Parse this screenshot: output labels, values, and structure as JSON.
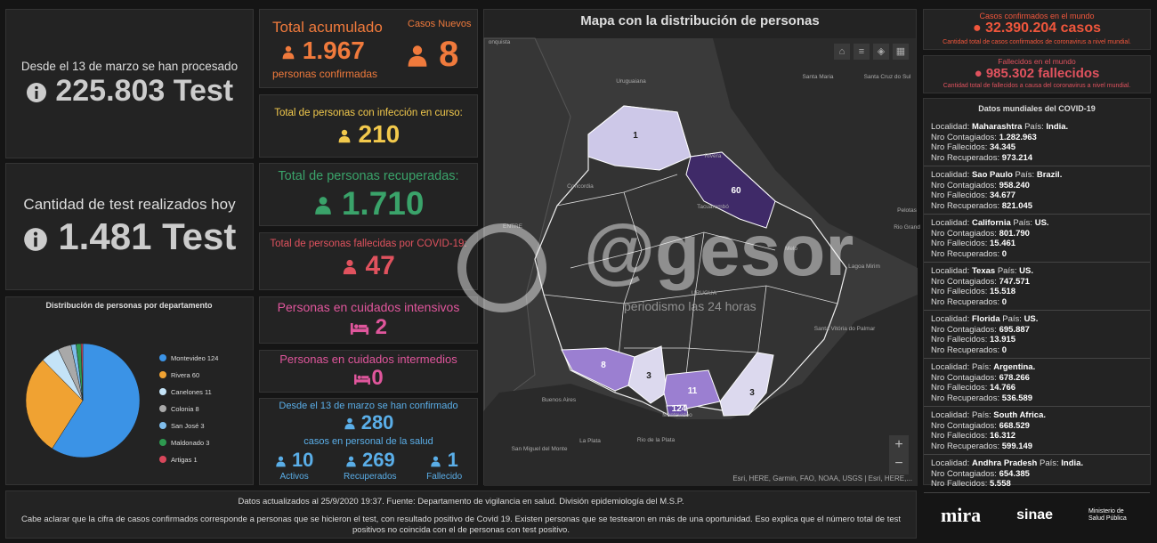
{
  "tests": {
    "processed_label": "Desde el 13 de marzo se han procesado",
    "processed_value": "225.803 Test",
    "today_label": "Cantidad de test realizados hoy",
    "today_value": "1.481 Test"
  },
  "cases": {
    "total_label": "Total acumulado",
    "total_value": "1.967",
    "total_sub": "personas confirmadas",
    "new_label": "Casos Nuevos",
    "new_value": "8"
  },
  "active": {
    "label": "Total de personas con infección en curso:",
    "value": "210"
  },
  "recovered": {
    "label": "Total de personas recuperadas:",
    "value": "1.710"
  },
  "deaths": {
    "label": "Total de personas fallecidas por COVID-19:",
    "value": "47"
  },
  "icu": {
    "label": "Personas en cuidados intensivos",
    "value": "2"
  },
  "intermediate": {
    "label": "Personas en cuidados intermedios",
    "value": "0"
  },
  "health_staff": {
    "label_top": "Desde el 13 de marzo se han confirmado",
    "value": "280",
    "label_bottom": "casos en personal de la salud",
    "items": [
      {
        "value": "10",
        "label": "Activos"
      },
      {
        "value": "269",
        "label": "Recuperados"
      },
      {
        "value": "1",
        "label": "Fallecido"
      }
    ]
  },
  "chart_data": {
    "type": "pie",
    "title": "Distribución de personas por departamento",
    "categories": [
      "Montevideo",
      "Rivera",
      "Canelones",
      "Colonia",
      "San José",
      "Maldonado",
      "Artigas"
    ],
    "values": [
      124,
      60,
      11,
      8,
      3,
      3,
      1
    ],
    "colors": [
      "#3b93e6",
      "#f0a232",
      "#c4e3f7",
      "#a9a9a9",
      "#7fbdeb",
      "#2e9a50",
      "#d9475b"
    ]
  },
  "map": {
    "title": "Mapa con la distribución de personas",
    "department_labels": [
      "1",
      "60",
      "8",
      "3",
      "11",
      "3",
      "124"
    ],
    "places": [
      "onquista",
      "Uruguaiana",
      "Santa Maria",
      "Santa Cruz do Sul",
      "Concordia",
      "Rivera",
      "Tacuarembó",
      "Pelotas",
      "Rio Grand",
      "Melo",
      "URUGUA",
      "Lagoa Mirim",
      "Santa Vitória do Palmar",
      "ENTRE",
      "Buenos Aires",
      "La Plata",
      "Montevideo",
      "Rio de la Plata",
      "San Miguel del Monte"
    ],
    "attribution": "Esri, HERE, Garmin, FAO, NOAA, USGS | Esri, HERE,...",
    "watermark": "@gesor",
    "watermark_sub": "periodismo las 24 horas"
  },
  "world": {
    "cases_label": "Casos confirmados en el mundo",
    "cases_value": "32.390.204 casos",
    "cases_note": "Cantidad total de casos confirmados de coronavirus a nivel mundial.",
    "deaths_label": "Fallecidos en el mundo",
    "deaths_value": "985.302 fallecidos",
    "deaths_note": "Cantidad total de fallecidos a causa del coronavirus a nivel mundial.",
    "list_title": "Datos mundiales del COVID-19",
    "field_labels": {
      "locality": "Localidad:",
      "country": "País:",
      "cases": "Nro Contagiados:",
      "deaths": "Nro Fallecidos:",
      "recovered": "Nro Recuperados:"
    },
    "entries": [
      {
        "locality": "Maharashtra",
        "country": "India.",
        "cases": "1.282.963",
        "deaths": "34.345",
        "recovered": "973.214"
      },
      {
        "locality": "Sao Paulo",
        "country": "Brazil.",
        "cases": "958.240",
        "deaths": "34.677",
        "recovered": "821.045"
      },
      {
        "locality": "California",
        "country": "US.",
        "cases": "801.790",
        "deaths": "15.461",
        "recovered": "0"
      },
      {
        "locality": "Texas",
        "country": "US.",
        "cases": "747.571",
        "deaths": "15.518",
        "recovered": "0"
      },
      {
        "locality": "Florida",
        "country": "US.",
        "cases": "695.887",
        "deaths": "13.915",
        "recovered": "0"
      },
      {
        "locality": null,
        "country": "Argentina.",
        "cases": "678.266",
        "deaths": "14.766",
        "recovered": "536.589"
      },
      {
        "locality": null,
        "country": "South Africa.",
        "cases": "668.529",
        "deaths": "16.312",
        "recovered": "599.149"
      },
      {
        "locality": "Andhra Pradesh",
        "country": "India.",
        "cases": "654.385",
        "deaths": "5.558",
        "recovered": null
      }
    ]
  },
  "footer": {
    "update": "Datos actualizados al 25/9/2020 19:37. Fuente: Departamento de vigilancia en salud. División epidemiología del M.S.P.",
    "note": "Cabe aclarar que la cifra de casos confirmados corresponde a personas que se hicieron el test, con resultado positivo de Covid 19. Existen personas que se testearon en más de una oportunidad. Eso explica que el número total de test positivos no coincida con el de personas con test positivo.",
    "logos": [
      "mira",
      "sinae",
      "Ministerio de Salud Pública"
    ]
  }
}
